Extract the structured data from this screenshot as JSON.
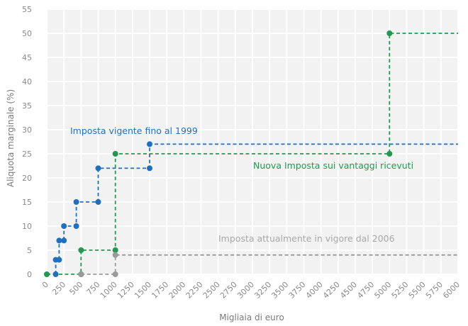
{
  "chart_data": {
    "type": "line",
    "xlabel": "Migliaia di euro",
    "ylabel": "Aliquota marginale (%)",
    "xlim": [
      0,
      6000
    ],
    "ylim": [
      0,
      55
    ],
    "x_ticks": [
      0,
      250,
      500,
      750,
      1000,
      1250,
      1500,
      1750,
      2000,
      2250,
      2500,
      2750,
      3000,
      3250,
      3500,
      3750,
      4000,
      4250,
      4500,
      4750,
      5000,
      5250,
      5500,
      5750,
      6000
    ],
    "y_ticks": [
      0,
      5,
      10,
      15,
      20,
      25,
      30,
      35,
      40,
      45,
      50,
      55
    ],
    "grid": true,
    "series": [
      {
        "name": "Imposta vigente fino al 1999",
        "color": "#1f6fbf",
        "style": "step-dashed",
        "points": [
          [
            130,
            0
          ],
          [
            130,
            3
          ],
          [
            180,
            3
          ],
          [
            180,
            7
          ],
          [
            250,
            7
          ],
          [
            250,
            10
          ],
          [
            430,
            10
          ],
          [
            430,
            15
          ],
          [
            750,
            15
          ],
          [
            750,
            22
          ],
          [
            1500,
            22
          ],
          [
            1500,
            27
          ]
        ],
        "extends_to": 6000
      },
      {
        "name": "Nuova Imposta sui vantaggi ricevuti",
        "color": "#1f9a4e",
        "style": "step-dashed",
        "points": [
          [
            0,
            0
          ],
          [
            500,
            0
          ],
          [
            500,
            5
          ],
          [
            1000,
            5
          ],
          [
            1000,
            25
          ],
          [
            5000,
            25
          ],
          [
            5000,
            50
          ]
        ],
        "extends_to": 6000
      },
      {
        "name": "Imposta attualmente in vigore dal 2006",
        "color": "#9a9a9a",
        "style": "step-dashed",
        "points": [
          [
            500,
            0
          ],
          [
            1000,
            0
          ],
          [
            1000,
            4
          ]
        ],
        "extends_to": 6000
      }
    ]
  }
}
